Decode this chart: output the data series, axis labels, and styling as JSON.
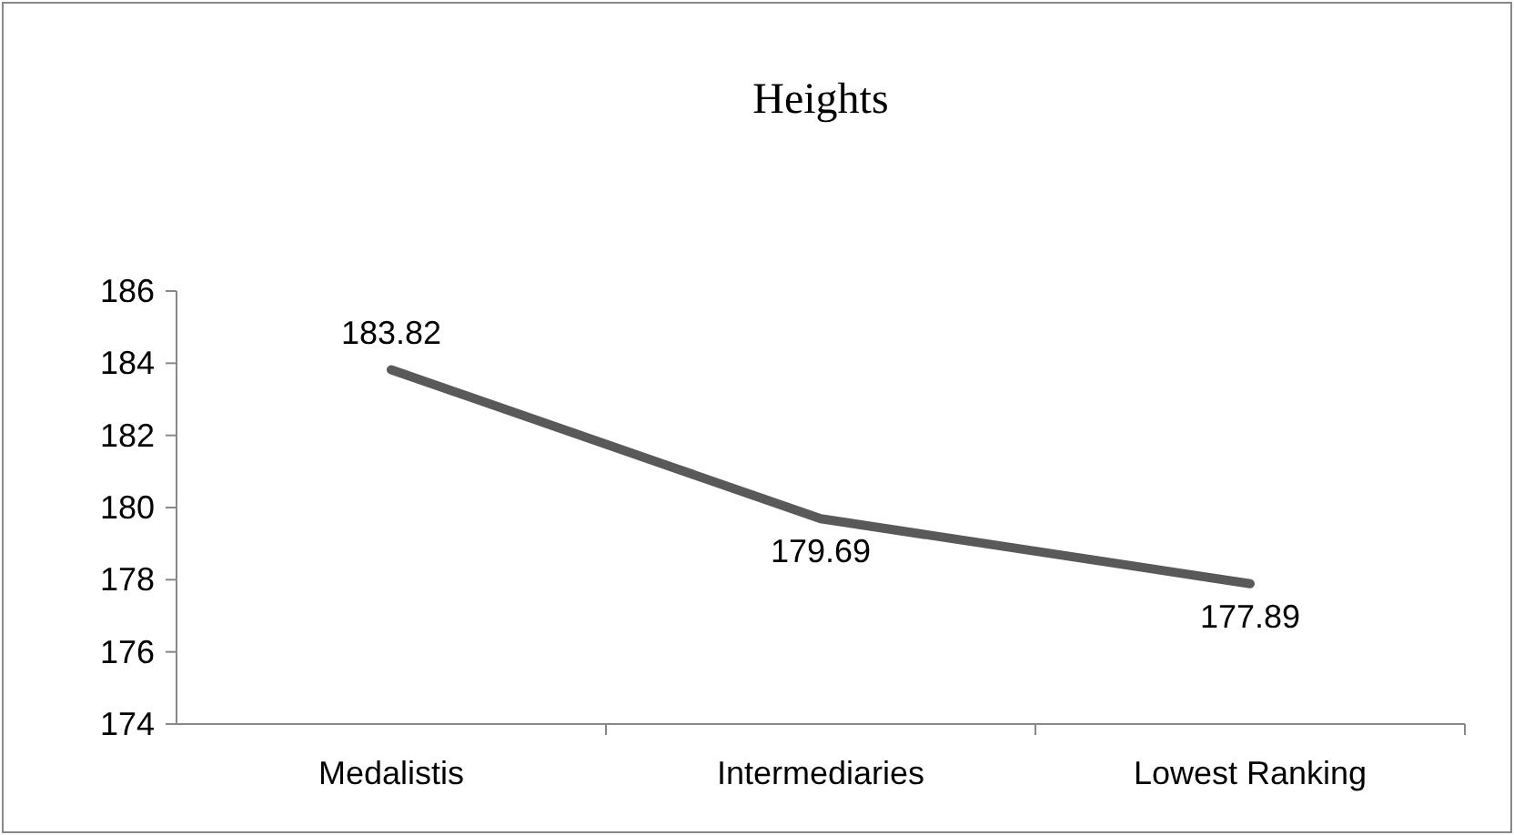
{
  "chart_data": {
    "type": "line",
    "title": "Heights",
    "categories": [
      "Medalistis",
      "Intermediaries",
      "Lowest Ranking"
    ],
    "series": [
      {
        "color": "#595959",
        "values": [
          183.82,
          179.69,
          177.89
        ]
      }
    ],
    "ylim": [
      174,
      186
    ],
    "yticks": [
      174,
      176,
      178,
      180,
      182,
      184,
      186
    ],
    "data_labels": true,
    "grid": false,
    "marker": "none",
    "line_style": "solid"
  }
}
